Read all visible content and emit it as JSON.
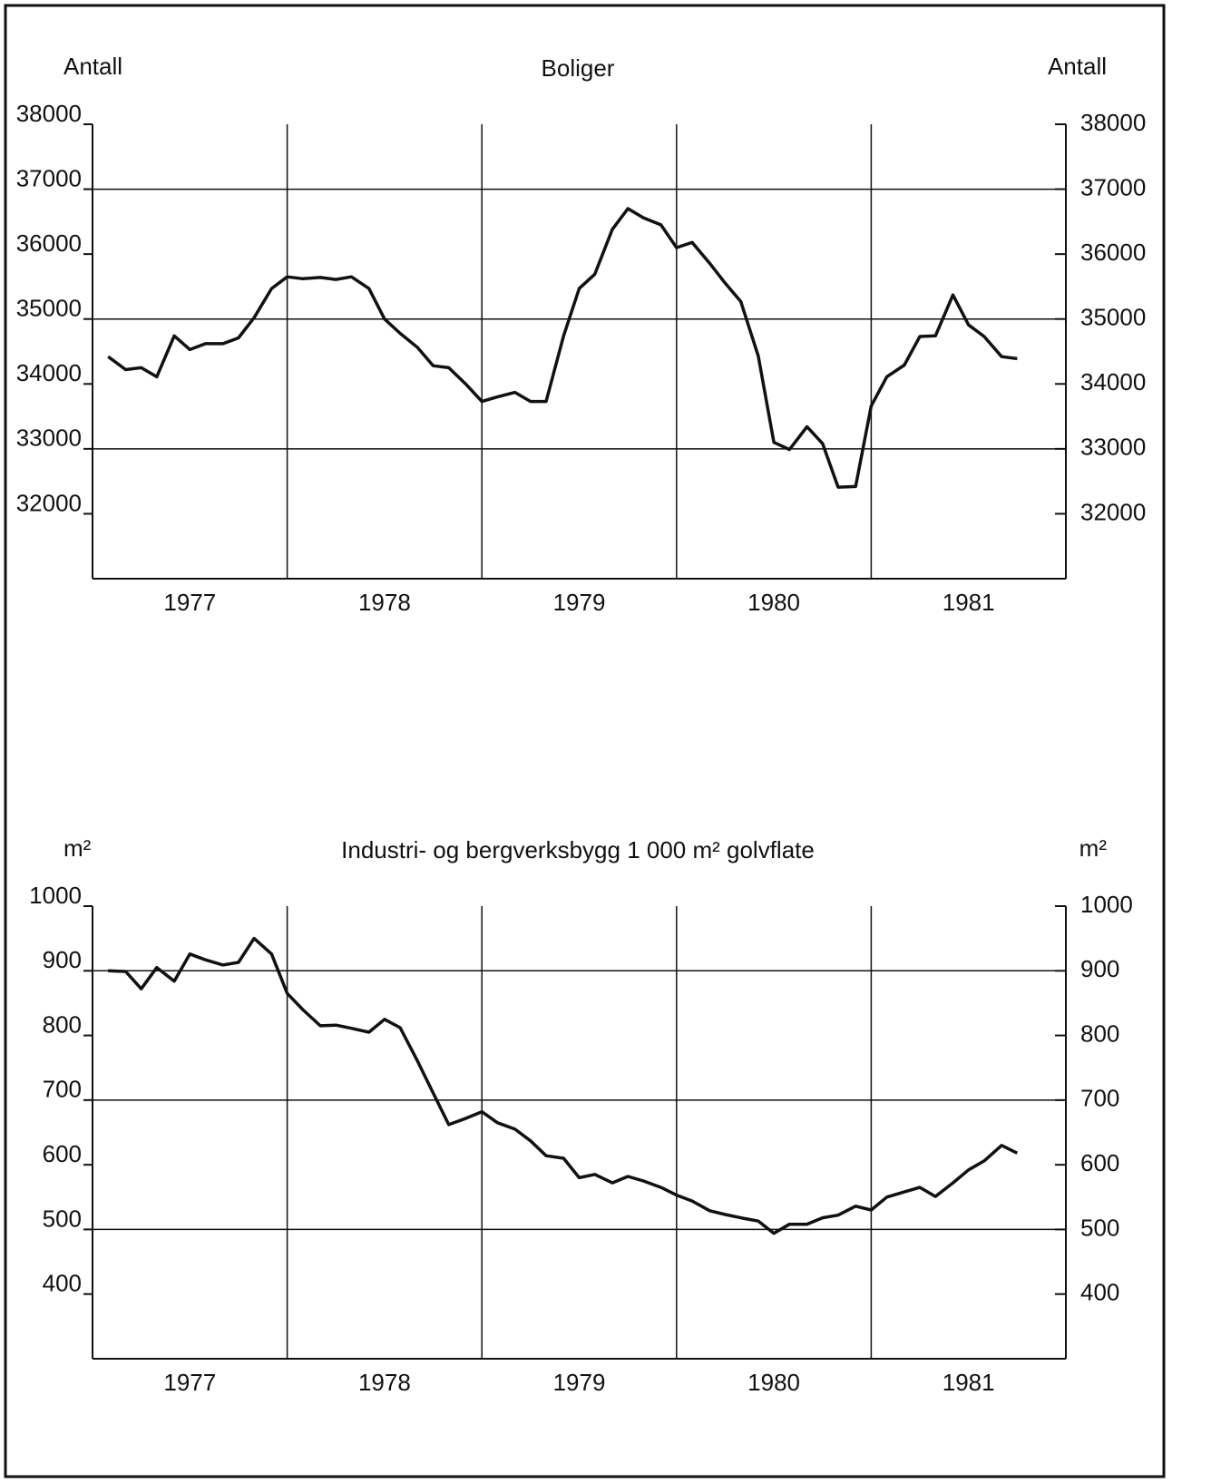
{
  "chart_data": [
    {
      "type": "line",
      "title": "Boliger",
      "ylabel": "Antall",
      "y2label": "Antall",
      "color": "#111111",
      "xlim": [
        1977,
        1982
      ],
      "xticks": [
        {
          "value": 1977.5,
          "label": "1977"
        },
        {
          "value": 1978.5,
          "label": "1978"
        },
        {
          "value": 1979.5,
          "label": "1979"
        },
        {
          "value": 1980.5,
          "label": "1980"
        },
        {
          "value": 1981.5,
          "label": "1981"
        }
      ],
      "xgrid": [
        1978,
        1979,
        1980,
        1981
      ],
      "ylim": [
        31000,
        38000
      ],
      "yticks": [
        32000,
        33000,
        34000,
        35000,
        36000,
        37000,
        38000
      ],
      "ygrid": [
        33000,
        35000,
        37000
      ],
      "right_axis": true,
      "x": [
        1977.08,
        1977.17,
        1977.25,
        1977.33,
        1977.42,
        1977.5,
        1977.58,
        1977.67,
        1977.75,
        1977.83,
        1977.92,
        1978.0,
        1978.08,
        1978.17,
        1978.25,
        1978.33,
        1978.42,
        1978.5,
        1978.58,
        1978.67,
        1978.75,
        1978.83,
        1978.92,
        1979.0,
        1979.08,
        1979.17,
        1979.25,
        1979.33,
        1979.42,
        1979.5,
        1979.58,
        1979.67,
        1979.75,
        1979.83,
        1979.92,
        1980.0,
        1980.08,
        1980.17,
        1980.25,
        1980.33,
        1980.42,
        1980.5,
        1980.58,
        1980.67,
        1980.75,
        1980.83,
        1980.92,
        1981.0,
        1981.08,
        1981.17,
        1981.25,
        1981.33,
        1981.42,
        1981.5,
        1981.58,
        1981.67,
        1981.75
      ],
      "values": [
        34420,
        34220,
        34250,
        34110,
        34740,
        34530,
        34620,
        34620,
        34710,
        35020,
        35470,
        35650,
        35620,
        35640,
        35610,
        35650,
        35470,
        35000,
        34780,
        34560,
        34280,
        34250,
        33990,
        33730,
        33800,
        33870,
        33730,
        33730,
        34740,
        35470,
        35690,
        36380,
        36700,
        36560,
        36450,
        36100,
        36180,
        35860,
        35550,
        35270,
        34430,
        33100,
        32990,
        33340,
        33080,
        32410,
        32420,
        33660,
        34110,
        34290,
        34730,
        34740,
        35370,
        34910,
        34730,
        34420,
        34390
      ]
    },
    {
      "type": "line",
      "title": "Industri- og bergverksbygg 1 000 m² golvflate",
      "ylabel": "m²",
      "y2label": "m²",
      "color": "#111111",
      "xlim": [
        1977,
        1982
      ],
      "xticks": [
        {
          "value": 1977.5,
          "label": "1977"
        },
        {
          "value": 1978.5,
          "label": "1978"
        },
        {
          "value": 1979.5,
          "label": "1979"
        },
        {
          "value": 1980.5,
          "label": "1980"
        },
        {
          "value": 1981.5,
          "label": "1981"
        }
      ],
      "xgrid": [
        1978,
        1979,
        1980,
        1981
      ],
      "ylim": [
        300,
        1000
      ],
      "yticks": [
        400,
        500,
        600,
        700,
        800,
        900,
        1000
      ],
      "ygrid": [
        500,
        700,
        900
      ],
      "right_axis": true,
      "x": [
        1977.08,
        1977.17,
        1977.25,
        1977.33,
        1977.42,
        1977.5,
        1977.58,
        1977.67,
        1977.75,
        1977.83,
        1977.92,
        1978.0,
        1978.08,
        1978.17,
        1978.25,
        1978.33,
        1978.42,
        1978.5,
        1978.58,
        1978.67,
        1978.75,
        1978.83,
        1978.92,
        1979.0,
        1979.08,
        1979.17,
        1979.25,
        1979.33,
        1979.42,
        1979.5,
        1979.58,
        1979.67,
        1979.75,
        1979.83,
        1979.92,
        1980.0,
        1980.08,
        1980.17,
        1980.25,
        1980.33,
        1980.42,
        1980.5,
        1980.58,
        1980.67,
        1980.75,
        1980.83,
        1980.92,
        1981.0,
        1981.08,
        1981.17,
        1981.25,
        1981.33,
        1981.42,
        1981.5,
        1981.58,
        1981.67,
        1981.75
      ],
      "values": [
        900,
        899,
        872,
        905,
        884,
        926,
        917,
        909,
        913,
        950,
        926,
        865,
        840,
        815,
        816,
        811,
        805,
        825,
        812,
        760,
        711,
        662,
        672,
        682,
        665,
        655,
        637,
        614,
        610,
        580,
        585,
        572,
        582,
        575,
        565,
        553,
        544,
        529,
        523,
        518,
        513,
        494,
        508,
        508,
        518,
        522,
        536,
        530,
        550,
        558,
        565,
        551,
        572,
        592,
        606,
        630,
        618
      ]
    }
  ]
}
